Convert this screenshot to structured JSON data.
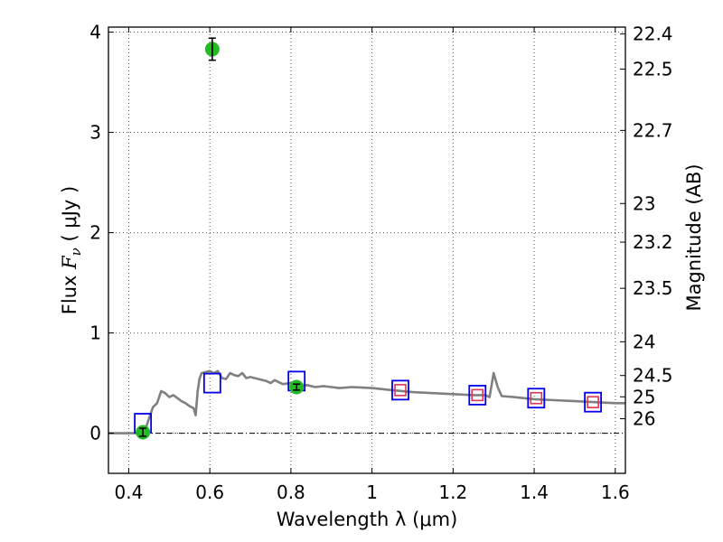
{
  "chart_data": {
    "type": "scatter",
    "title": "",
    "xlabel": "Wavelength  λ (μm)",
    "ylabel": "Flux  F_ν  ( μJy )",
    "ylabel_parts": {
      "pre": "Flux ",
      "sym": "F",
      "sub": "ν",
      "post": "  ( μJy )"
    },
    "y2label": "Magnitude (AB)",
    "xlim": [
      0.35,
      1.625
    ],
    "ylim": [
      -0.4,
      4.05
    ],
    "grid": true,
    "x_ticks": [
      0.4,
      0.6,
      0.8,
      1.0,
      1.2,
      1.4,
      1.6
    ],
    "x_tick_labels": [
      "0.4",
      "0.6",
      "0.8",
      "1",
      "1.2",
      "1.4",
      "1.6"
    ],
    "y_ticks": [
      0,
      1,
      2,
      3,
      4
    ],
    "y_tick_labels": [
      "0",
      "1",
      "2",
      "3",
      "4"
    ],
    "mag_ticks": [
      "22.4",
      "22.5",
      "22.7",
      "23",
      "23.2",
      "23.5",
      "24",
      "24.5",
      "25",
      "26"
    ],
    "zero_line": 0,
    "colors": {
      "observed": "#22bb22",
      "model_box": "#0000ee",
      "model_box_inner": "#dd3355",
      "sed": "#808080",
      "grid": "#555555"
    },
    "observed_points": [
      {
        "x": 0.435,
        "y": 0.01,
        "err": 0.04
      },
      {
        "x": 0.606,
        "y": 3.83,
        "err": 0.11
      },
      {
        "x": 0.814,
        "y": 0.46,
        "err": 0.03
      }
    ],
    "model_photometry": [
      {
        "x": 0.435,
        "y": 0.1,
        "inner": false
      },
      {
        "x": 0.606,
        "y": 0.5,
        "inner": false
      },
      {
        "x": 0.814,
        "y": 0.52,
        "inner": false
      },
      {
        "x": 1.07,
        "y": 0.43,
        "inner": true
      },
      {
        "x": 1.26,
        "y": 0.38,
        "inner": true
      },
      {
        "x": 1.405,
        "y": 0.35,
        "inner": true
      },
      {
        "x": 1.545,
        "y": 0.31,
        "inner": true
      }
    ],
    "sed_curve": {
      "x": [
        0.35,
        0.42,
        0.44,
        0.45,
        0.46,
        0.47,
        0.48,
        0.49,
        0.5,
        0.51,
        0.52,
        0.53,
        0.54,
        0.55,
        0.56,
        0.565,
        0.57,
        0.575,
        0.58,
        0.59,
        0.6,
        0.61,
        0.62,
        0.63,
        0.64,
        0.65,
        0.66,
        0.67,
        0.68,
        0.69,
        0.7,
        0.72,
        0.74,
        0.75,
        0.76,
        0.78,
        0.8,
        0.82,
        0.84,
        0.86,
        0.88,
        0.9,
        0.92,
        0.95,
        1.0,
        1.05,
        1.1,
        1.15,
        1.2,
        1.25,
        1.28,
        1.29,
        1.3,
        1.31,
        1.32,
        1.35,
        1.4,
        1.45,
        1.5,
        1.55,
        1.6,
        1.625
      ],
      "y": [
        0.0,
        0.0,
        0.02,
        0.15,
        0.26,
        0.3,
        0.42,
        0.4,
        0.36,
        0.38,
        0.35,
        0.32,
        0.3,
        0.27,
        0.25,
        0.18,
        0.42,
        0.55,
        0.6,
        0.61,
        0.62,
        0.6,
        0.62,
        0.55,
        0.54,
        0.6,
        0.58,
        0.57,
        0.6,
        0.55,
        0.56,
        0.54,
        0.52,
        0.5,
        0.53,
        0.49,
        0.5,
        0.47,
        0.48,
        0.46,
        0.47,
        0.46,
        0.45,
        0.46,
        0.45,
        0.43,
        0.41,
        0.4,
        0.39,
        0.38,
        0.38,
        0.36,
        0.6,
        0.46,
        0.37,
        0.36,
        0.34,
        0.33,
        0.32,
        0.31,
        0.3,
        0.3
      ]
    }
  }
}
